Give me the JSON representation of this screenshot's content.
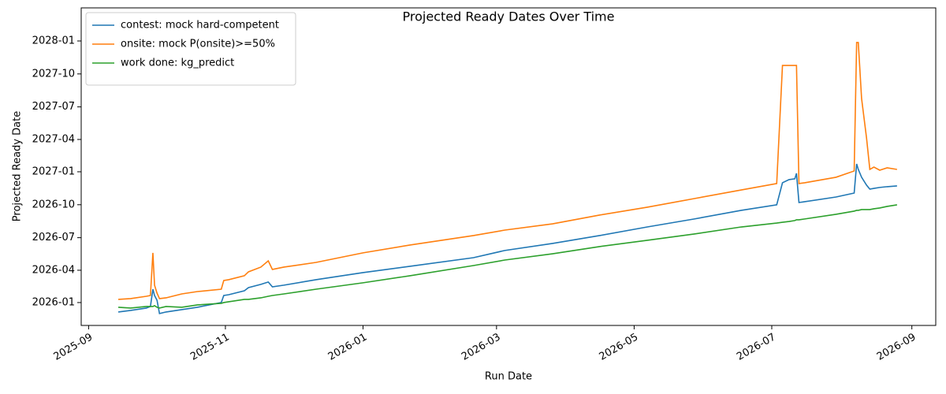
{
  "chart_data": {
    "type": "line",
    "title": "Projected Ready Dates Over Time",
    "x_label": "Run Date",
    "y_label": "Projected Ready Date",
    "x": [
      2025.703,
      2025.718,
      2025.737,
      2025.742,
      2025.745,
      2025.747,
      2025.75,
      2025.753,
      2025.761,
      2025.78,
      2025.799,
      2025.828,
      2025.831,
      2025.837,
      2025.856,
      2025.861,
      2025.876,
      2025.885,
      2025.89,
      2025.904,
      2025.943,
      2026.0,
      2026.057,
      2026.134,
      2026.172,
      2026.23,
      2026.287,
      2026.345,
      2026.402,
      2026.459,
      2026.502,
      2026.509,
      2026.517,
      2026.524,
      2026.526,
      2026.529,
      2026.536,
      2026.574,
      2026.596,
      2026.599,
      2026.601,
      2026.605,
      2026.611,
      2026.615,
      2026.62,
      2026.627,
      2026.636,
      2026.648
    ],
    "series": [
      {
        "name": "contest: mock hard-competent",
        "color": "#1f77b4",
        "values": [
          2025.928,
          2025.94,
          2025.958,
          2025.97,
          2026.102,
          2026.054,
          2026.018,
          2025.916,
          2025.928,
          2025.946,
          2025.964,
          2026.0,
          2026.054,
          2026.06,
          2026.09,
          2026.114,
          2026.139,
          2026.157,
          2026.12,
          2026.133,
          2026.175,
          2026.229,
          2026.277,
          2026.343,
          2026.398,
          2026.452,
          2026.512,
          2026.578,
          2026.639,
          2026.705,
          2026.747,
          2026.916,
          2026.94,
          2026.946,
          2026.988,
          2026.765,
          2026.771,
          2026.807,
          2026.837,
          2027.06,
          2027.018,
          2026.958,
          2026.898,
          2026.867,
          2026.873,
          2026.88,
          2026.886,
          2026.892
        ]
      },
      {
        "name": "onsite: mock P(onsite)>=50%",
        "color": "#ff7f0e",
        "values": [
          2026.024,
          2026.03,
          2026.048,
          2026.054,
          2026.38,
          2026.133,
          2026.072,
          2026.03,
          2026.036,
          2026.066,
          2026.084,
          2026.102,
          2026.169,
          2026.175,
          2026.205,
          2026.235,
          2026.271,
          2026.319,
          2026.253,
          2026.271,
          2026.307,
          2026.38,
          2026.44,
          2026.512,
          2026.554,
          2026.602,
          2026.669,
          2026.729,
          2026.795,
          2026.861,
          2026.91,
          2027.813,
          2027.813,
          2027.813,
          2027.813,
          2026.91,
          2026.916,
          2026.958,
          2027.006,
          2027.988,
          2027.988,
          2027.56,
          2027.259,
          2027.018,
          2027.036,
          2027.012,
          2027.03,
          2027.018
        ]
      },
      {
        "name": "work done: kg_predict",
        "color": "#2ca02c",
        "values": [
          2025.964,
          2025.958,
          2025.97,
          2025.97,
          2025.97,
          2025.976,
          2025.964,
          2025.958,
          2025.97,
          2025.964,
          2025.982,
          2025.994,
          2026.0,
          2026.006,
          2026.024,
          2026.024,
          2026.036,
          2026.048,
          2026.054,
          2026.066,
          2026.102,
          2026.151,
          2026.205,
          2026.283,
          2026.325,
          2026.373,
          2026.428,
          2026.476,
          2026.524,
          2026.578,
          2026.608,
          2026.614,
          2026.62,
          2026.627,
          2026.633,
          2026.633,
          2026.639,
          2026.675,
          2026.699,
          2026.705,
          2026.705,
          2026.711,
          2026.711,
          2026.711,
          2026.717,
          2026.723,
          2026.735,
          2026.747
        ]
      }
    ],
    "xlim": [
      2025.658,
      2026.695
    ],
    "xticks": [
      {
        "value": 2025.667,
        "label": "2025-09"
      },
      {
        "value": 2025.833,
        "label": "2025-11"
      },
      {
        "value": 2026.0,
        "label": "2026-01"
      },
      {
        "value": 2026.162,
        "label": "2026-03"
      },
      {
        "value": 2026.329,
        "label": "2026-05"
      },
      {
        "value": 2026.496,
        "label": "2026-07"
      },
      {
        "value": 2026.666,
        "label": "2026-09"
      }
    ],
    "ylim": [
      2025.825,
      2028.253
    ],
    "yticks": [
      {
        "value": 2026.0,
        "label": "2026-01"
      },
      {
        "value": 2026.247,
        "label": "2026-04"
      },
      {
        "value": 2026.496,
        "label": "2026-07"
      },
      {
        "value": 2026.748,
        "label": "2026-10"
      },
      {
        "value": 2027.0,
        "label": "2027-01"
      },
      {
        "value": 2027.247,
        "label": "2027-04"
      },
      {
        "value": 2027.496,
        "label": "2027-07"
      },
      {
        "value": 2027.748,
        "label": "2027-10"
      },
      {
        "value": 2028.0,
        "label": "2028-01"
      }
    ],
    "grid": false,
    "legend": "upper left"
  }
}
